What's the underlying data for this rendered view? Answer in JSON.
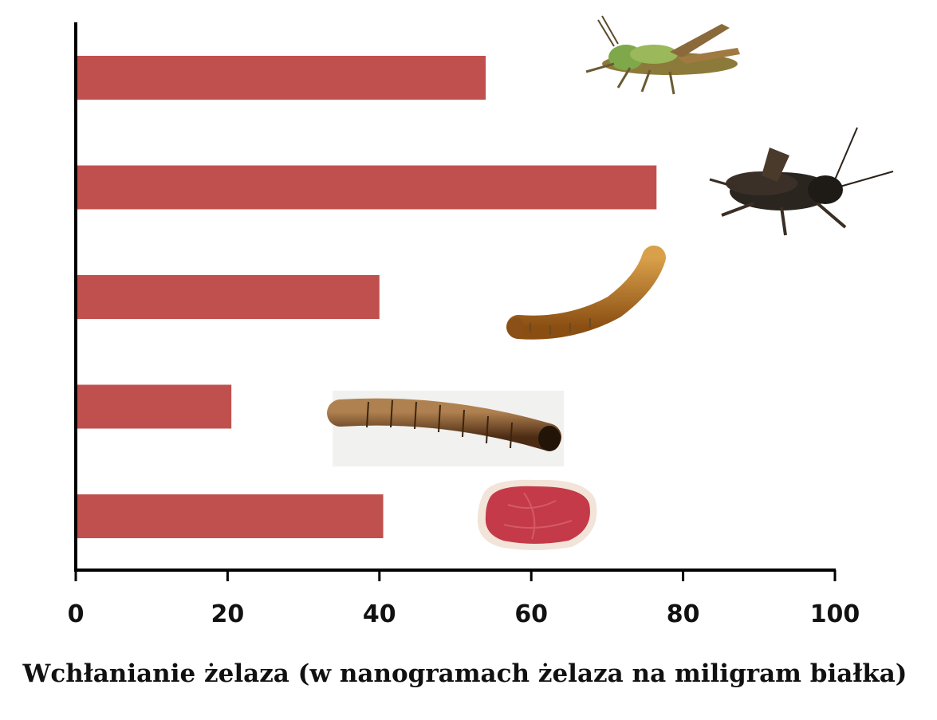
{
  "chart_data": {
    "type": "bar",
    "orientation": "horizontal",
    "categories": [
      "grasshopper",
      "cricket",
      "lesser-mealworm",
      "mealworm",
      "beef-sirloin"
    ],
    "values": [
      54,
      76.5,
      40,
      20.5,
      40.5
    ],
    "title": "",
    "xlabel": "Wchłanianie żelaza (w nanogramach żelaza na miligram białka)",
    "ylabel": "",
    "xlim": [
      0,
      100
    ],
    "xticks": [
      0,
      20,
      40,
      60,
      80,
      100
    ],
    "grid": false,
    "legend": "none",
    "bar_color": "#c0504d",
    "icons": [
      "grasshopper-icon",
      "cricket-icon",
      "lesser-mealworm-icon",
      "mealworm-icon",
      "beef-steak-icon"
    ]
  }
}
